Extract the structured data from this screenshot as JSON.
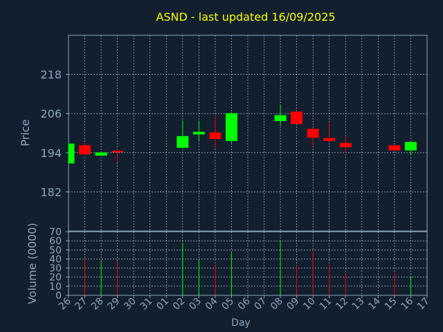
{
  "chart_data": {
    "type": "candlestick",
    "title": "ASND - last updated 16/09/2025",
    "xlabel": "Day",
    "ylabel": "Price",
    "volume_ylabel": "Volume (0000)",
    "price_yticks": [
      182,
      194,
      206,
      218
    ],
    "price_ylim": [
      170,
      230
    ],
    "volume_yticks": [
      0,
      10,
      20,
      30,
      40,
      50,
      60,
      70
    ],
    "volume_ylim": [
      0,
      70
    ],
    "x_tick_labels": [
      "26",
      "27",
      "28",
      "29",
      "30",
      "31",
      "01",
      "02",
      "03",
      "04",
      "05",
      "06",
      "07",
      "08",
      "09",
      "10",
      "11",
      "12",
      "13",
      "14",
      "15",
      "16",
      "17"
    ],
    "grid": true,
    "colors": {
      "background": "#111f2f",
      "title": "#ffff00",
      "axis": "#8fa8c0",
      "grid": "#d0d8e0",
      "up": "#00ff00",
      "down": "#ff0000"
    },
    "candles": [
      {
        "day": "26",
        "open": 190.7,
        "high": 197.0,
        "low": 190.7,
        "close": 196.8,
        "volume": 0
      },
      {
        "day": "27",
        "open": 196.3,
        "high": 197.3,
        "low": 193.1,
        "close": 193.5,
        "volume": 40
      },
      {
        "day": "28",
        "open": 193.1,
        "high": 194.3,
        "low": 193.1,
        "close": 194.1,
        "volume": 38
      },
      {
        "day": "29",
        "open": 194.6,
        "high": 195.0,
        "low": 191.0,
        "close": 194.1,
        "volume": 38
      },
      {
        "day": "02",
        "open": 195.5,
        "high": 203.8,
        "low": 195.5,
        "close": 199.1,
        "volume": 58
      },
      {
        "day": "03",
        "open": 199.6,
        "high": 203.8,
        "low": 197.6,
        "close": 200.4,
        "volume": 40
      },
      {
        "day": "04",
        "open": 200.2,
        "high": 205.3,
        "low": 195.3,
        "close": 198.2,
        "volume": 33
      },
      {
        "day": "05",
        "open": 197.6,
        "high": 206.4,
        "low": 197.0,
        "close": 206.1,
        "volume": 47
      },
      {
        "day": "08",
        "open": 203.7,
        "high": 208.6,
        "low": 202.2,
        "close": 205.5,
        "volume": 60
      },
      {
        "day": "09",
        "open": 206.6,
        "high": 206.9,
        "low": 202.8,
        "close": 202.8,
        "volume": 33
      },
      {
        "day": "10",
        "open": 201.3,
        "high": 201.8,
        "low": 196.0,
        "close": 198.6,
        "volume": 50
      },
      {
        "day": "11",
        "open": 198.5,
        "high": 203.2,
        "low": 197.6,
        "close": 197.6,
        "volume": 34
      },
      {
        "day": "12",
        "open": 197.0,
        "high": 198.9,
        "low": 193.9,
        "close": 195.7,
        "volume": 24
      },
      {
        "day": "15",
        "open": 196.3,
        "high": 196.3,
        "low": 194.7,
        "close": 194.7,
        "volume": 25
      },
      {
        "day": "16",
        "open": 194.7,
        "high": 197.3,
        "low": 193.1,
        "close": 197.3,
        "volume": 21
      }
    ]
  }
}
